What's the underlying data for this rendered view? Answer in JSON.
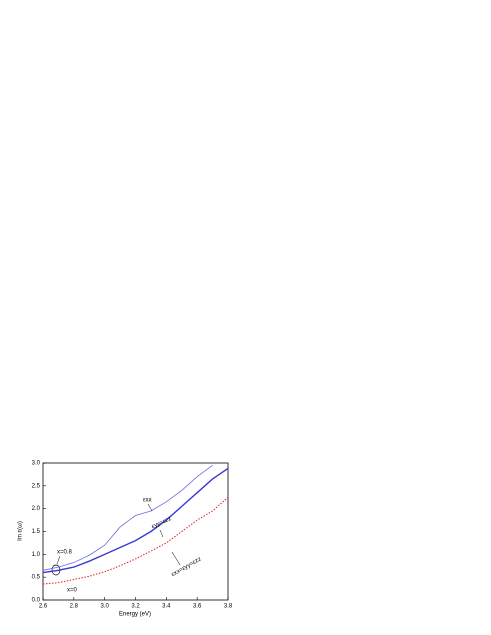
{
  "chart_data": {
    "type": "line",
    "xlabel": "Energy (eV)",
    "ylabel": "Im ε(ω)",
    "x": [
      2.6,
      2.7,
      2.8,
      2.9,
      3.0,
      3.1,
      3.2,
      3.3,
      3.4,
      3.5,
      3.6,
      3.7,
      3.8
    ],
    "series": [
      {
        "name": "εxx",
        "color": "#6a6ae8",
        "width": 0.8,
        "dash": false,
        "values": [
          0.65,
          0.72,
          0.82,
          0.98,
          1.2,
          1.6,
          1.85,
          1.95,
          2.15,
          2.4,
          2.7,
          2.95,
          null
        ]
      },
      {
        "name": "εyy=εzz",
        "color": "#3a3ad0",
        "width": 1.4,
        "dash": false,
        "values": [
          0.6,
          0.65,
          0.72,
          0.85,
          1.0,
          1.15,
          1.3,
          1.5,
          1.75,
          2.05,
          2.35,
          2.65,
          2.88
        ]
      },
      {
        "name": "εxx=εyy=εzz",
        "color": "#e02020",
        "width": 1.0,
        "dash": true,
        "values": [
          0.35,
          0.38,
          0.45,
          0.52,
          0.62,
          0.75,
          0.9,
          1.07,
          1.25,
          1.5,
          1.75,
          1.95,
          2.25
        ]
      }
    ],
    "annotations": [
      "x=0.8",
      "x=0"
    ],
    "xlim": [
      2.6,
      3.8
    ],
    "xticks": [
      2.6,
      2.8,
      {
        "value": 3,
        "label": "3.0"
      },
      3.2,
      3.4,
      3.6,
      3.8
    ],
    "ylim": [
      0,
      3
    ],
    "yticks": [
      {
        "value": 0,
        "label": "0.0"
      },
      0.5,
      {
        "value": 1,
        "label": "1.0"
      },
      1.5,
      {
        "value": 2,
        "label": "2.0"
      },
      2.5,
      {
        "value": 3,
        "label": "3.0"
      }
    ]
  }
}
